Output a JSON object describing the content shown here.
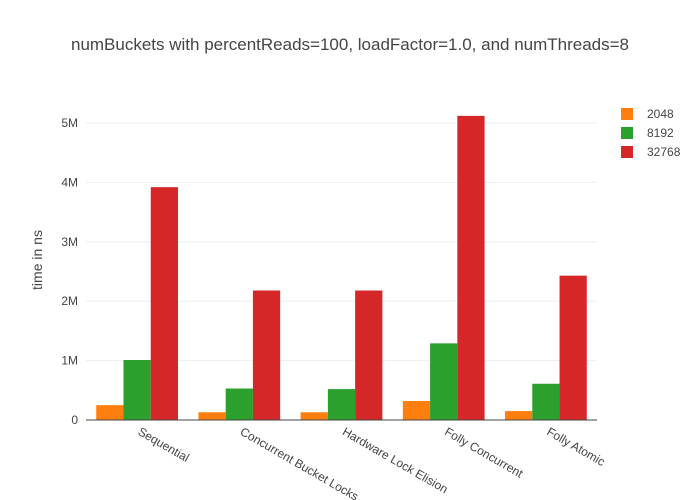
{
  "chart_data": {
    "type": "bar",
    "title": "numBuckets with percentReads=100, loadFactor=1.0, and numThreads=8",
    "xlabel": "",
    "ylabel": "time in ns",
    "categories": [
      "Sequential",
      "Concurrent Bucket Locks",
      "Hardware Lock Elision",
      "Folly Concurrent",
      "Folly Atomic"
    ],
    "series": [
      {
        "name": "2048",
        "color": "#ff7f0e",
        "values": [
          250000,
          130000,
          130000,
          320000,
          150000
        ]
      },
      {
        "name": "8192",
        "color": "#2ca02c",
        "values": [
          1010000,
          530000,
          520000,
          1290000,
          610000
        ]
      },
      {
        "name": "32768",
        "color": "#d62728",
        "values": [
          3920000,
          2180000,
          2180000,
          5120000,
          2430000
        ]
      }
    ],
    "ylim": [
      0,
      5300000
    ],
    "yticks": [
      0,
      1000000,
      2000000,
      3000000,
      4000000,
      5000000
    ],
    "ytick_labels": [
      "0",
      "1M",
      "2M",
      "3M",
      "4M",
      "5M"
    ],
    "grid": true,
    "legend_position": "top-right"
  }
}
